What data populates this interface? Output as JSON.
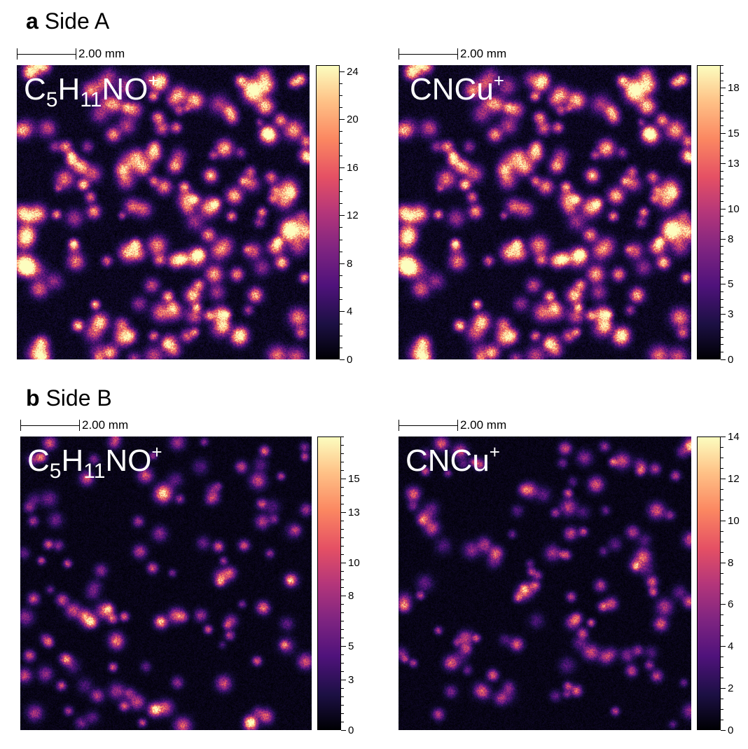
{
  "sections": [
    {
      "letter": "a",
      "title": "Side A",
      "panels": [
        {
          "scale_label": "2.00 mm",
          "ion_main": "C",
          "ion_sub1": "5",
          "ion_mid": "H",
          "ion_sub2": "11",
          "ion_end": "NO",
          "ion_charge": "+",
          "colorbar_ticks": [
            "24",
            "20",
            "16",
            "12",
            "8",
            "4",
            "0"
          ],
          "colorbar_max": 24.5,
          "intensity": "high",
          "seed": 11
        },
        {
          "scale_label": "2.00 mm",
          "ion_main": "CNCu",
          "ion_sub1": "",
          "ion_mid": "",
          "ion_sub2": "",
          "ion_end": "",
          "ion_charge": "+",
          "colorbar_ticks": [
            "18",
            "15",
            "13",
            "10",
            "8",
            "5",
            "3",
            "0"
          ],
          "colorbar_max": 19.5,
          "intensity": "high",
          "seed": 11
        }
      ]
    },
    {
      "letter": "b",
      "title": "Side B",
      "panels": [
        {
          "scale_label": "2.00 mm",
          "ion_main": "C",
          "ion_sub1": "5",
          "ion_mid": "H",
          "ion_sub2": "11",
          "ion_end": "NO",
          "ion_charge": "+",
          "colorbar_ticks": [
            "15",
            "13",
            "10",
            "8",
            "5",
            "3",
            "0"
          ],
          "colorbar_max": 17.5,
          "intensity": "low",
          "seed": 37
        },
        {
          "scale_label": "2.00 mm",
          "ion_main": "CNCu",
          "ion_sub1": "",
          "ion_mid": "",
          "ion_sub2": "",
          "ion_end": "",
          "ion_charge": "+",
          "colorbar_ticks": [
            "14",
            "12",
            "10",
            "8",
            "6",
            "4",
            "2",
            "0"
          ],
          "colorbar_max": 14,
          "intensity": "low",
          "seed": 53
        }
      ]
    }
  ],
  "colormap": "magma"
}
